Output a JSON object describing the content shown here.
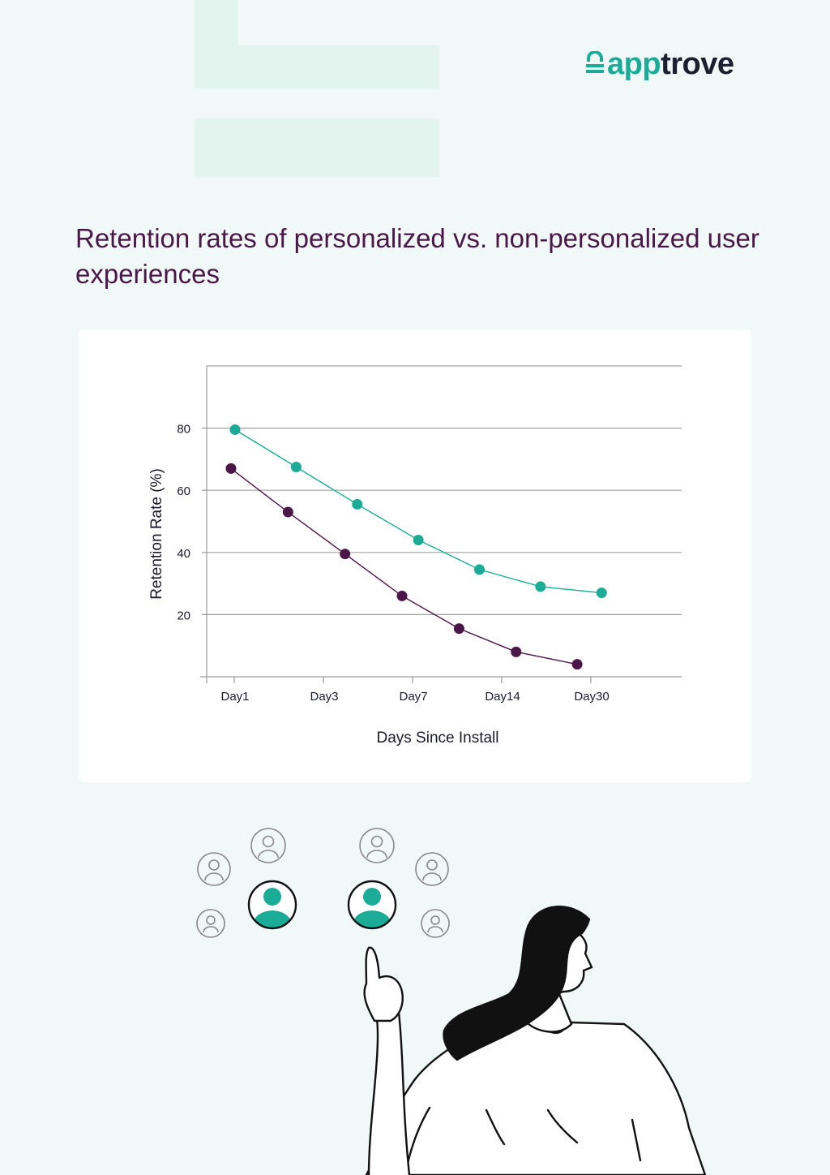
{
  "brand": {
    "logo_prefix": "app",
    "logo_suffix": "trove",
    "logo_icon": "lock-icon",
    "accent_color": "#1bac98",
    "dark_color": "#1a2030"
  },
  "heading": {
    "title": "Retention rates of personalized vs. non-personalized user experiences",
    "color": "#4a1748"
  },
  "chart_data": {
    "type": "line",
    "categories": [
      "Day1",
      "Day3",
      "Day7",
      "Day14",
      "Day30"
    ],
    "xlabel": "Days Since Install",
    "ylabel": "Retention Rate (%)",
    "yticks": [
      20,
      40,
      60,
      80
    ],
    "ylim": [
      0,
      100
    ],
    "grid": true,
    "series": [
      {
        "color": "#1bac98",
        "x": [
          0.5,
          1.25,
          2.0,
          2.75,
          3.5,
          4.25,
          5.0
        ],
        "values": [
          79.5,
          67.5,
          55.5,
          44,
          34.5,
          29,
          27
        ]
      },
      {
        "color": "#4a1748",
        "x": [
          0.45,
          1.15,
          1.85,
          2.55,
          3.25,
          3.95,
          4.7
        ],
        "values": [
          67,
          53,
          39.5,
          26,
          15.5,
          8,
          4
        ]
      }
    ]
  },
  "illustration": {
    "description_icons": [
      "user-icon",
      "user-icon",
      "user-icon",
      "user-icon",
      "user-icon",
      "user-icon"
    ],
    "highlight_color": "#1bac98"
  }
}
